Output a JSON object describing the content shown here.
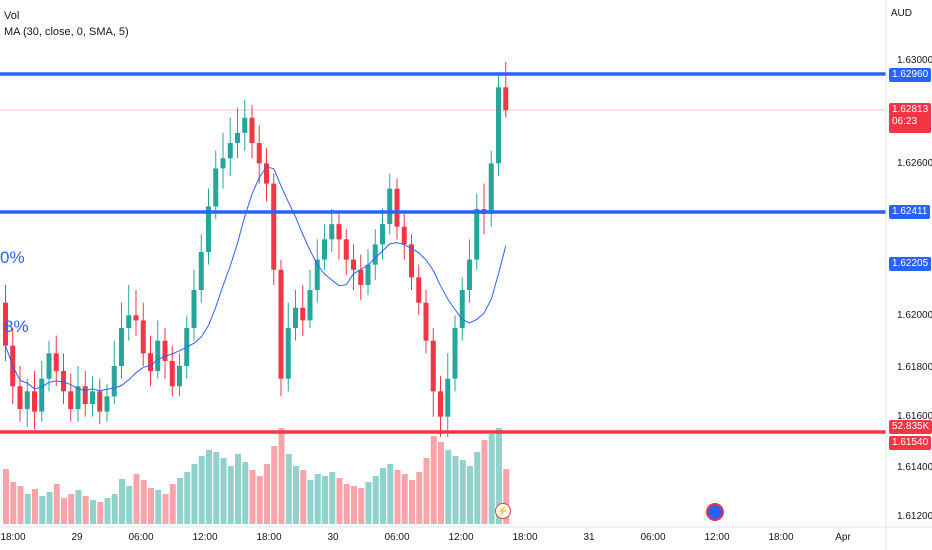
{
  "legend": {
    "vol": "Vol",
    "ma": "MA (30, close, 0, SMA, 5)"
  },
  "fib_labels": {
    "a": "0%",
    "b": "8%"
  },
  "currency": "AUD",
  "price_axis": [
    "1.63000",
    "1.62600",
    "1.62000",
    "1.61800",
    "1.61600",
    "1.61400",
    "1.61200"
  ],
  "badges": {
    "top_res": "1.62960",
    "current_price": "1.62813",
    "countdown": "06:23",
    "mid_res": "1.62411",
    "ma_value": "1.62205",
    "volume": "52.835K",
    "support": "1.61540"
  },
  "time_axis": [
    "18:00",
    "29",
    "06:00",
    "12:00",
    "18:00",
    "30",
    "06:00",
    "12:00",
    "18:00",
    "31",
    "06:00",
    "12:00",
    "18:00",
    "Apr"
  ],
  "colors": {
    "up": "#26a69a",
    "down": "#f23645",
    "hline_blue": "#2962ff",
    "hline_red": "#f23645",
    "ma": "#2962ff"
  },
  "icons": {
    "live": "lightning-icon",
    "event": "economic-event-icon"
  }
}
